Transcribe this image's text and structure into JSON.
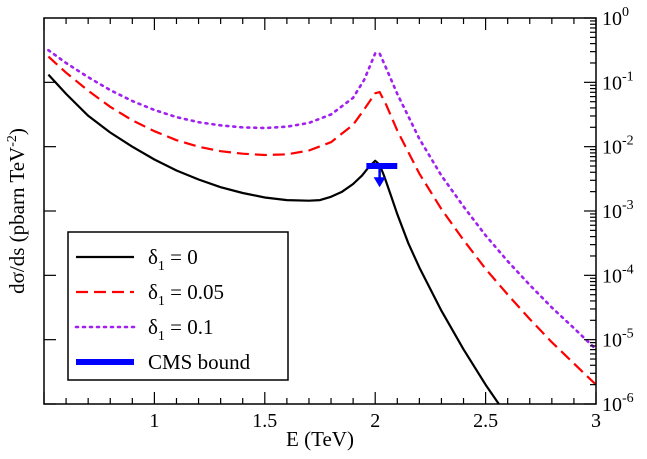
{
  "chart_data": {
    "type": "line",
    "xlabel": "E (TeV)",
    "ylabel_parts": [
      "dσ/ds (pbarn TeV",
      "-2",
      ")"
    ],
    "xlim": [
      0.5,
      3.0
    ],
    "ylim_log10": [
      -6,
      0
    ],
    "x_ticks": [
      1,
      1.5,
      2,
      2.5,
      3
    ],
    "x_tick_labels": [
      "1",
      "1.5",
      "2",
      "2.5",
      "3"
    ],
    "y_tick_base": "10",
    "y_tick_exponents": [
      "-6",
      "-5",
      "-4",
      "-3",
      "-2",
      "-1",
      "0"
    ],
    "y_tick_values_log10": [
      -6,
      -5,
      -4,
      -3,
      -2,
      -1,
      0
    ],
    "series": [
      {
        "name": "δ1 = 0",
        "legend_symbol": "δ",
        "legend_sub": "1",
        "legend_rest": " = 0",
        "color": "#000000",
        "style": "solid",
        "x": [
          0.52,
          0.6,
          0.7,
          0.8,
          0.9,
          1.0,
          1.1,
          1.2,
          1.3,
          1.4,
          1.5,
          1.6,
          1.7,
          1.75,
          1.8,
          1.85,
          1.9,
          1.94,
          1.97,
          2.0,
          2.02,
          2.04,
          2.07,
          2.1,
          2.15,
          2.2,
          2.3,
          2.4,
          2.5,
          2.6
        ],
        "log10y": [
          -0.88,
          -1.18,
          -1.52,
          -1.78,
          -2.0,
          -2.2,
          -2.37,
          -2.51,
          -2.63,
          -2.72,
          -2.79,
          -2.83,
          -2.84,
          -2.83,
          -2.78,
          -2.7,
          -2.58,
          -2.45,
          -2.32,
          -2.22,
          -2.28,
          -2.45,
          -2.75,
          -3.05,
          -3.5,
          -3.88,
          -4.55,
          -5.15,
          -5.7,
          -6.2
        ]
      },
      {
        "name": "δ1 = 0.05",
        "legend_symbol": "δ",
        "legend_sub": "1",
        "legend_rest": " = 0.05",
        "color": "#ff0000",
        "style": "dashed",
        "x": [
          0.52,
          0.6,
          0.7,
          0.8,
          0.9,
          1.0,
          1.1,
          1.2,
          1.3,
          1.4,
          1.5,
          1.6,
          1.7,
          1.8,
          1.9,
          1.95,
          2.0,
          2.02,
          2.05,
          2.1,
          2.2,
          2.3,
          2.4,
          2.5,
          2.6,
          2.7,
          2.8,
          2.9,
          3.0
        ],
        "log10y": [
          -0.6,
          -0.85,
          -1.13,
          -1.38,
          -1.59,
          -1.76,
          -1.9,
          -2.0,
          -2.07,
          -2.11,
          -2.13,
          -2.12,
          -2.06,
          -1.93,
          -1.66,
          -1.42,
          -1.17,
          -1.15,
          -1.35,
          -1.75,
          -2.42,
          -2.97,
          -3.45,
          -3.9,
          -4.3,
          -4.68,
          -5.04,
          -5.37,
          -5.7
        ]
      },
      {
        "name": "δ1 = 0.1",
        "legend_symbol": "δ",
        "legend_sub": "1",
        "legend_rest": " = 0.1",
        "color": "#a020f0",
        "style": "dotted",
        "x": [
          0.52,
          0.6,
          0.7,
          0.8,
          0.9,
          1.0,
          1.1,
          1.2,
          1.3,
          1.4,
          1.5,
          1.6,
          1.7,
          1.8,
          1.9,
          1.95,
          2.0,
          2.02,
          2.05,
          2.1,
          2.2,
          2.3,
          2.4,
          2.5,
          2.6,
          2.7,
          2.8,
          2.9,
          3.0
        ],
        "log10y": [
          -0.5,
          -0.7,
          -0.92,
          -1.12,
          -1.29,
          -1.43,
          -1.54,
          -1.62,
          -1.67,
          -1.7,
          -1.71,
          -1.69,
          -1.63,
          -1.5,
          -1.24,
          -0.96,
          -0.55,
          -0.55,
          -0.78,
          -1.18,
          -1.88,
          -2.45,
          -2.93,
          -3.38,
          -3.78,
          -4.15,
          -4.5,
          -4.82,
          -5.15
        ]
      }
    ],
    "cms_bound": {
      "name": "CMS bound",
      "color": "#0000ff",
      "x_range": [
        1.96,
        2.1
      ],
      "log10y": -2.3,
      "arrow_x": 2.02,
      "arrow_to_log10y": -2.6
    }
  }
}
